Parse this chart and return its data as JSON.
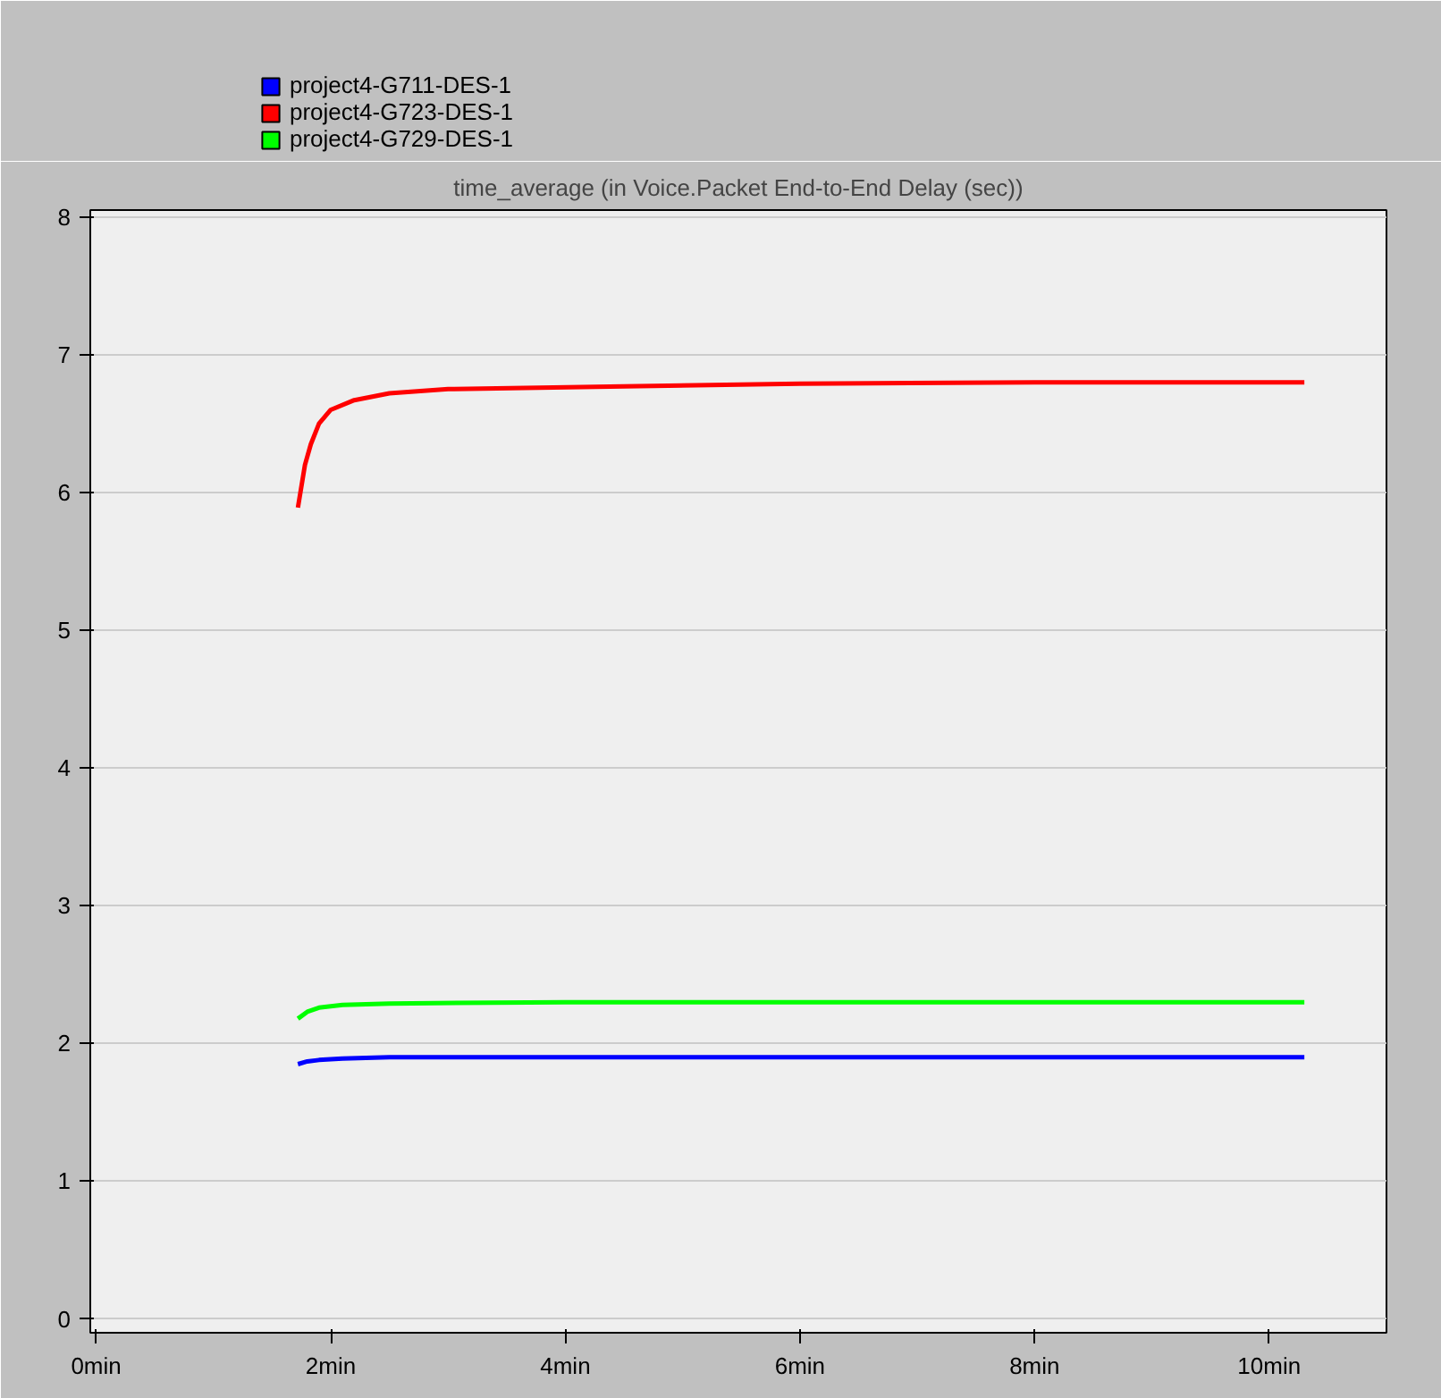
{
  "chart_data": {
    "type": "line",
    "title": "time_average (in Voice.Packet End-to-End Delay (sec))",
    "xlim": [
      -0.05,
      11
    ],
    "ylim": [
      -0.1,
      8.05
    ],
    "xticks": [
      {
        "value": 0,
        "label": "0min"
      },
      {
        "value": 2,
        "label": "2min"
      },
      {
        "value": 4,
        "label": "4min"
      },
      {
        "value": 6,
        "label": "6min"
      },
      {
        "value": 8,
        "label": "8min"
      },
      {
        "value": 10,
        "label": "10min"
      }
    ],
    "yticks": [
      0,
      1,
      2,
      3,
      4,
      5,
      6,
      7,
      8
    ],
    "grid": "y",
    "legend": "top left",
    "line_style": "solid",
    "series": [
      {
        "name": "project4-G711-DES-1",
        "color": "#0000ff",
        "x": [
          1.72,
          1.8,
          1.9,
          2.1,
          2.5,
          4,
          6,
          8,
          10.3
        ],
        "values": [
          1.85,
          1.87,
          1.88,
          1.89,
          1.9,
          1.9,
          1.9,
          1.9,
          1.9
        ]
      },
      {
        "name": "project4-G723-DES-1",
        "color": "#ff0000",
        "x": [
          1.72,
          1.78,
          1.83,
          1.9,
          2.0,
          2.2,
          2.5,
          3,
          4.5,
          6,
          8,
          10.3
        ],
        "values": [
          5.89,
          6.2,
          6.35,
          6.5,
          6.6,
          6.67,
          6.72,
          6.75,
          6.77,
          6.79,
          6.8,
          6.8
        ]
      },
      {
        "name": "project4-G729-DES-1",
        "color": "#00ff00",
        "x": [
          1.72,
          1.8,
          1.9,
          2.1,
          2.5,
          4,
          6,
          8,
          10.3
        ],
        "values": [
          2.18,
          2.23,
          2.26,
          2.28,
          2.29,
          2.3,
          2.3,
          2.3,
          2.3
        ]
      }
    ]
  }
}
